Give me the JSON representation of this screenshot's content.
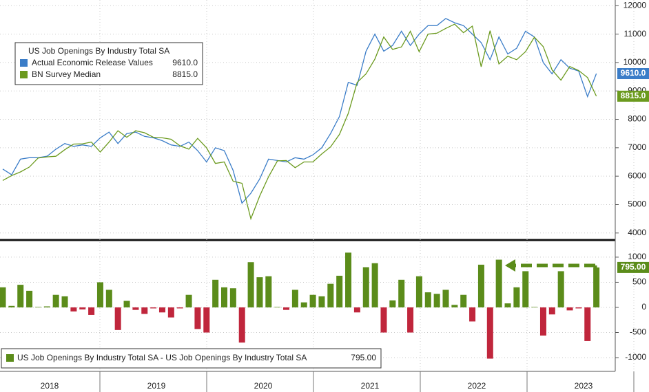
{
  "chart_data": [
    {
      "type": "line",
      "legend_title": "US Job Openings By Industry Total SA",
      "ylim": [
        3850,
        12200
      ],
      "yticks": [
        {
          "value": 4000,
          "label": "4000"
        },
        {
          "value": 5000,
          "label": "5000"
        },
        {
          "value": 6000,
          "label": "6000"
        },
        {
          "value": 7000,
          "label": "7000"
        },
        {
          "value": 8000,
          "label": "8000"
        },
        {
          "value": 9000,
          "label": "9000"
        },
        {
          "value": 10000,
          "label": "10000"
        },
        {
          "value": 11000,
          "label": "11000"
        },
        {
          "value": 12000,
          "label": "12000"
        }
      ],
      "grid": true,
      "legend": "upper left",
      "series": [
        {
          "name": "Actual Economic Release Values",
          "color": "#3b7dc8",
          "last_label": "9610.0",
          "values": [
            6250,
            6050,
            6600,
            6650,
            6650,
            6700,
            6950,
            7150,
            7050,
            7100,
            7050,
            7350,
            7550,
            7150,
            7500,
            7550,
            7400,
            7350,
            7250,
            7100,
            7050,
            7200,
            6900,
            6500,
            7000,
            6900,
            6200,
            5050,
            5400,
            5900,
            6600,
            6550,
            6500,
            6650,
            6600,
            6750,
            7000,
            7500,
            8100,
            9300,
            9200,
            10400,
            11000,
            10400,
            10600,
            11100,
            10600,
            11000,
            11300,
            11300,
            11550,
            11400,
            11300,
            11000,
            10700,
            10100,
            10900,
            10300,
            10500,
            11100,
            10900,
            10000,
            9600,
            10100,
            9800,
            9700,
            8800,
            9610
          ]
        },
        {
          "name": "BN Survey Median",
          "color": "#6b9a1e",
          "last_label": "8815.0",
          "values": [
            5850,
            6020,
            6150,
            6320,
            6640,
            6680,
            6700,
            6930,
            7130,
            7140,
            7200,
            6850,
            7200,
            7600,
            7370,
            7600,
            7530,
            7370,
            7350,
            7300,
            7070,
            6950,
            7330,
            7000,
            6450,
            6500,
            5820,
            5750,
            4500,
            5300,
            5980,
            6540,
            6550,
            6300,
            6500,
            6500,
            6780,
            7030,
            7470,
            8210,
            9300,
            9600,
            10120,
            10900,
            10460,
            10550,
            11100,
            10380,
            11000,
            11030,
            11200,
            11350,
            11050,
            11280,
            9850,
            11120,
            9950,
            10220,
            10100,
            10380,
            10890,
            10560,
            9740,
            9380,
            9860,
            9720,
            9470,
            8815
          ]
        }
      ]
    },
    {
      "type": "bar",
      "legend_label": "US Job Openings By Industry Total SA - US Job Openings By Industry Total SA",
      "last_label": "795.00",
      "color": "#5b8c1a",
      "negative_color": "#c0263c",
      "ylim": [
        -1150,
        1300
      ],
      "yticks": [
        -1000,
        -500,
        0,
        500,
        1000
      ],
      "grid": true,
      "year_labels": [
        "2018",
        "2019",
        "2020",
        "2021",
        "2022",
        "2023"
      ],
      "values": [
        400,
        30,
        450,
        330,
        10,
        20,
        250,
        220,
        -80,
        -40,
        -150,
        500,
        350,
        -450,
        130,
        -50,
        -130,
        -20,
        -100,
        -200,
        -20,
        250,
        -430,
        -500,
        550,
        400,
        380,
        -700,
        900,
        600,
        620,
        10,
        -50,
        350,
        100,
        250,
        220,
        470,
        630,
        1090,
        -100,
        800,
        880,
        -500,
        140,
        550,
        -500,
        620,
        300,
        270,
        350,
        50,
        250,
        -280,
        850,
        -1020,
        950,
        80,
        400,
        720,
        10,
        -560,
        -140,
        720,
        -60,
        -20,
        -670,
        795
      ]
    }
  ]
}
